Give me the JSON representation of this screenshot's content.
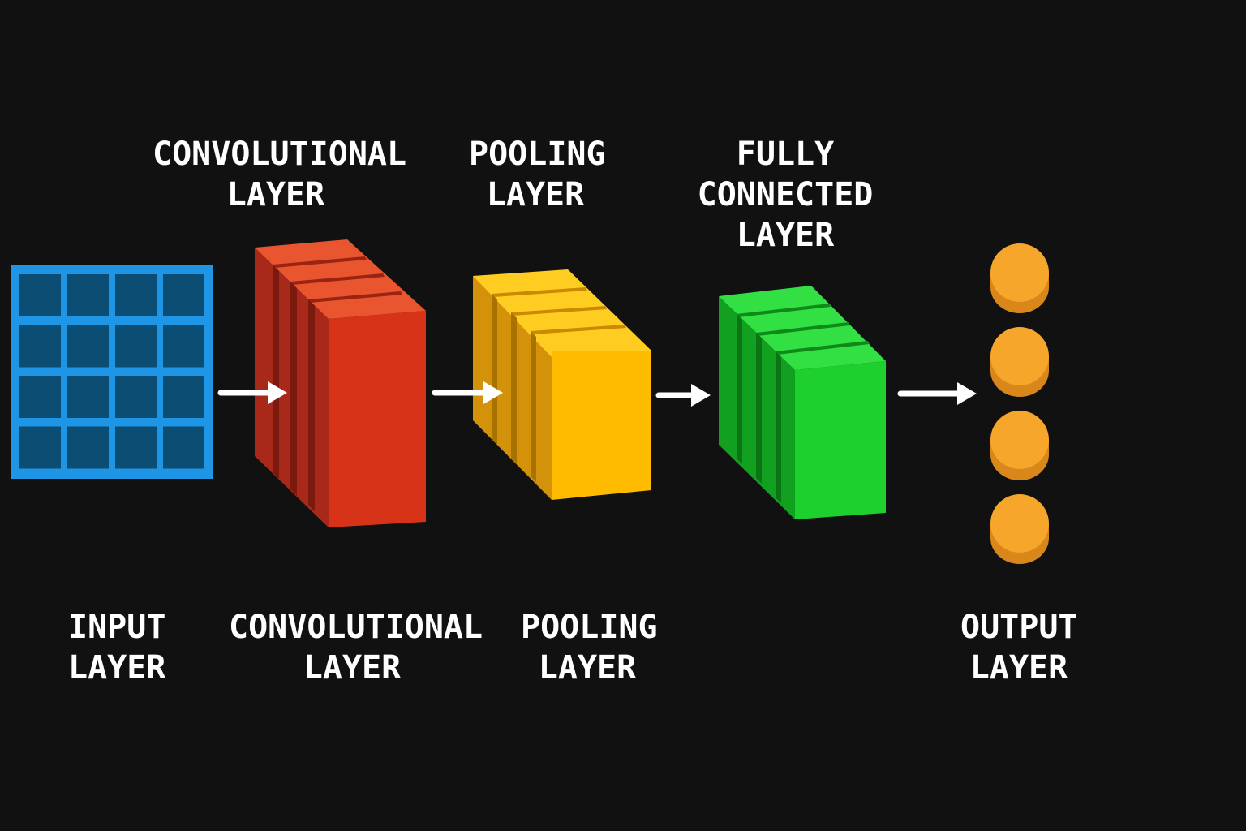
{
  "colors": {
    "background": "#111111",
    "input": "#1f95e6",
    "input_cell": "#0b4d73",
    "conv": "#d63318",
    "pool": "#ffbb00",
    "fc": "#1ed02e",
    "output": "#f7a62c",
    "arrow": "#ffffff",
    "text": "#ffffff"
  },
  "top_labels": {
    "conv": {
      "line1": "CONVOLUTIONAL",
      "line2": "LAYER"
    },
    "pool": {
      "line1": "POOLING",
      "line2": "LAYER"
    },
    "fc": {
      "line1": "FULLY",
      "line2": "CONNECTED",
      "line3": "LAYER"
    }
  },
  "bottom_labels": {
    "input": {
      "line1": "INPUT",
      "line2": "LAYER"
    },
    "conv": {
      "line1": "CONVOLUTIONAL",
      "line2": "LAYER"
    },
    "pool": {
      "line1": "POOLING",
      "line2": "LAYER"
    },
    "output": {
      "line1": "OUTPUT",
      "line2": "LAYER"
    }
  },
  "input_grid": {
    "rows": 4,
    "cols": 4
  },
  "output_node_count": 4,
  "icons": {
    "input": "grid-icon",
    "conv": "feature-map-stack-icon",
    "pool": "pooled-stack-icon",
    "fc": "dense-block-icon",
    "output": "neuron-node-icon",
    "arrow": "arrow-right-icon"
  }
}
